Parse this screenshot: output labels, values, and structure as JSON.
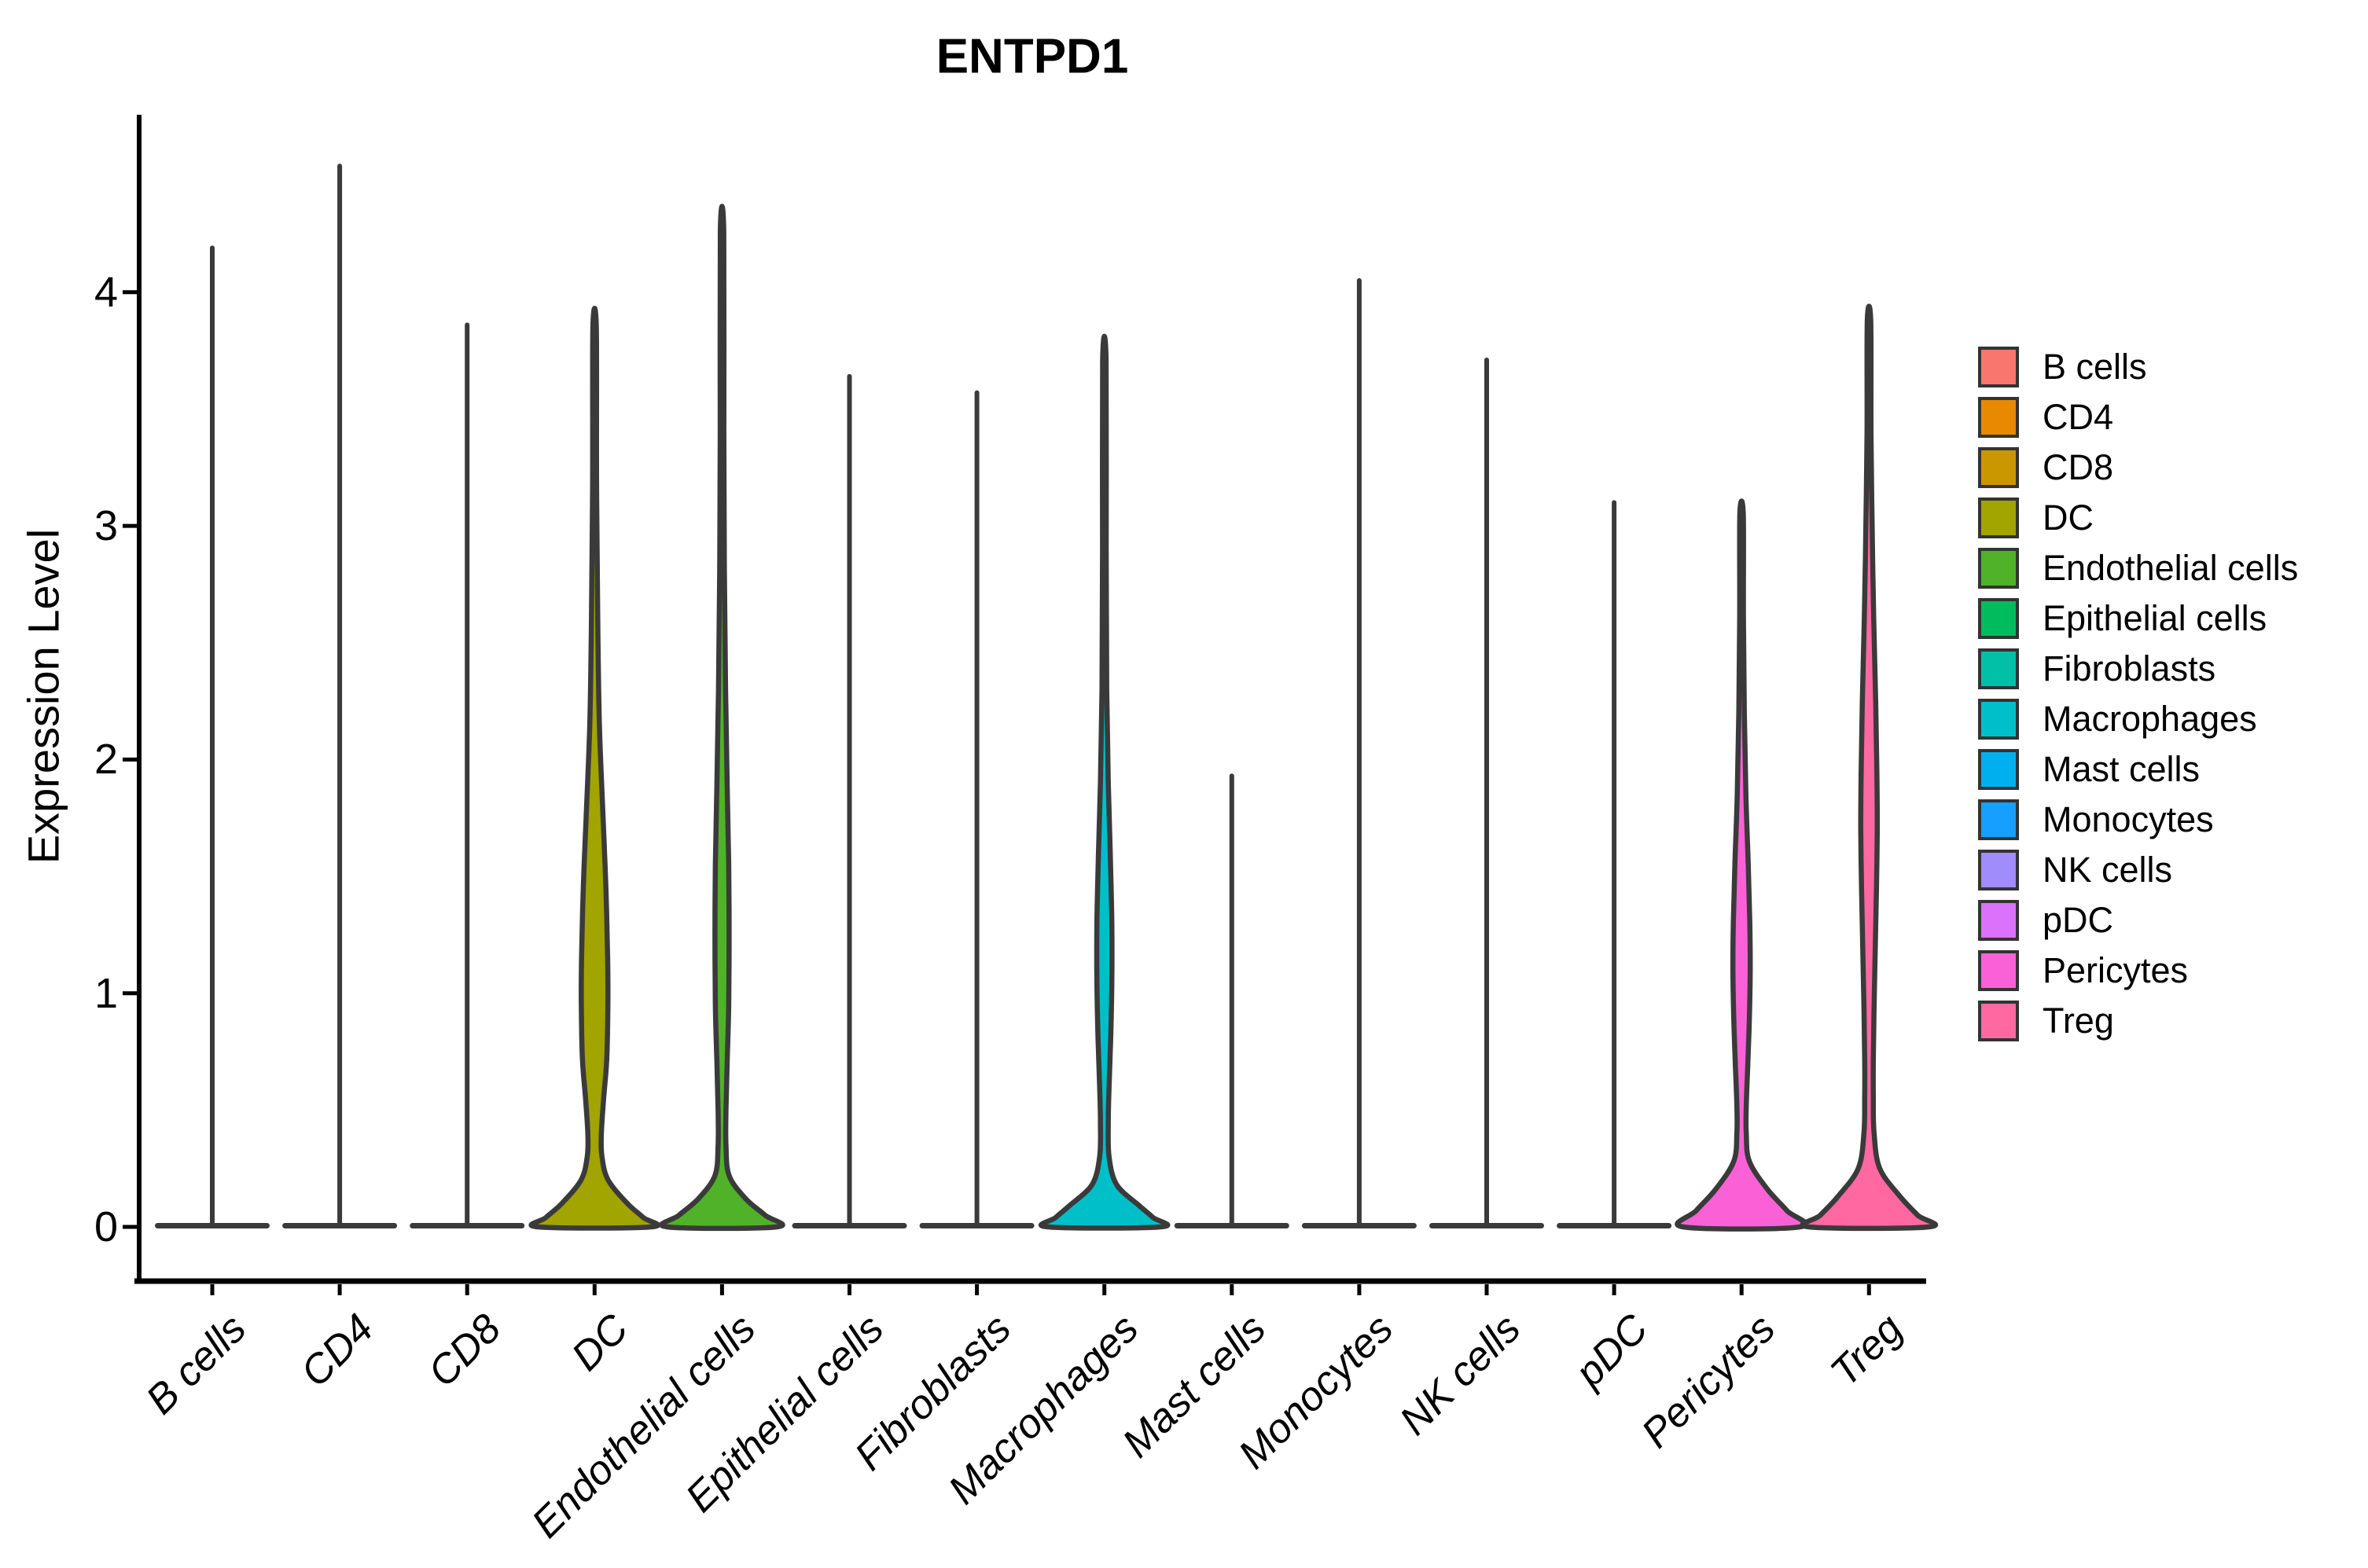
{
  "figure": {
    "title": "ENTPD1"
  },
  "axes": {
    "y_label": "Expression Level",
    "y_ticks": [
      "0",
      "1",
      "2",
      "3",
      "4"
    ],
    "x_tick_labels": [
      "B cells",
      "CD4",
      "CD8",
      "DC",
      "Endothelial cells",
      "Epithelial cells",
      "Fibroblasts",
      "Macrophages",
      "Mast cells",
      "Monocytes",
      "NK cells",
      "pDC",
      "Pericytes",
      "Treg"
    ]
  },
  "legend": {
    "items": [
      {
        "label": "B cells",
        "color": "#F8766D"
      },
      {
        "label": "CD4",
        "color": "#E78A00"
      },
      {
        "label": "CD8",
        "color": "#CB9701"
      },
      {
        "label": "DC",
        "color": "#A2A400"
      },
      {
        "label": "Endothelial cells",
        "color": "#4FB228"
      },
      {
        "label": "Epithelial cells",
        "color": "#00BC5D"
      },
      {
        "label": "Fibroblasts",
        "color": "#00C1A7"
      },
      {
        "label": "Macrophages",
        "color": "#00BFC9"
      },
      {
        "label": "Mast cells",
        "color": "#00B0EE"
      },
      {
        "label": "Monocytes",
        "color": "#169FFF"
      },
      {
        "label": "NK cells",
        "color": "#A18CFC"
      },
      {
        "label": "pDC",
        "color": "#DB72FB"
      },
      {
        "label": "Pericytes",
        "color": "#FA61D7"
      },
      {
        "label": "Treg",
        "color": "#FF68A1"
      }
    ]
  },
  "chart_data": {
    "type": "violin",
    "title": "ENTPD1",
    "xlabel": "",
    "ylabel": "Expression Level",
    "ylim": [
      0,
      4.75
    ],
    "yticks": [
      0,
      1,
      2,
      3,
      4
    ],
    "grid": false,
    "legend_position": "right",
    "categories": [
      "B cells",
      "CD4",
      "CD8",
      "DC",
      "Endothelial cells",
      "Epithelial cells",
      "Fibroblasts",
      "Macrophages",
      "Mast cells",
      "Monocytes",
      "NK cells",
      "pDC",
      "Pericytes",
      "Treg"
    ],
    "series": [
      {
        "name": "B cells",
        "color": "#F8766D",
        "max_expression": 4.19,
        "shape": "flat",
        "profile": null
      },
      {
        "name": "CD4",
        "color": "#E78A00",
        "max_expression": 4.54,
        "shape": "flat",
        "profile": null
      },
      {
        "name": "CD8",
        "color": "#CB9701",
        "max_expression": 3.86,
        "shape": "flat",
        "profile": null
      },
      {
        "name": "DC",
        "color": "#A2A400",
        "max_expression": 3.85,
        "shape": "bulged",
        "profile": [
          [
            3.85,
            0.03
          ],
          [
            3.2,
            0.035
          ],
          [
            2.6,
            0.055
          ],
          [
            2.15,
            0.085
          ],
          [
            1.75,
            0.15
          ],
          [
            1.45,
            0.2
          ],
          [
            1.15,
            0.23
          ],
          [
            0.95,
            0.235
          ],
          [
            0.72,
            0.215
          ],
          [
            0.55,
            0.16
          ],
          [
            0.4,
            0.12
          ],
          [
            0.3,
            0.13
          ],
          [
            0.2,
            0.24
          ],
          [
            0.1,
            0.58
          ],
          [
            0.04,
            0.86
          ],
          [
            0,
            1.0
          ]
        ]
      },
      {
        "name": "Endothelial cells",
        "color": "#4FB228",
        "max_expression": 4.26,
        "shape": "bulged",
        "profile": [
          [
            4.26,
            0.03
          ],
          [
            3.4,
            0.032
          ],
          [
            2.8,
            0.042
          ],
          [
            2.3,
            0.062
          ],
          [
            1.9,
            0.09
          ],
          [
            1.55,
            0.118
          ],
          [
            1.25,
            0.125
          ],
          [
            0.95,
            0.118
          ],
          [
            0.7,
            0.09
          ],
          [
            0.5,
            0.07
          ],
          [
            0.35,
            0.07
          ],
          [
            0.22,
            0.125
          ],
          [
            0.12,
            0.42
          ],
          [
            0.05,
            0.76
          ],
          [
            0,
            0.97
          ]
        ]
      },
      {
        "name": "Epithelial cells",
        "color": "#00BC5D",
        "max_expression": 3.64,
        "shape": "flat",
        "profile": null
      },
      {
        "name": "Fibroblasts",
        "color": "#00C1A7",
        "max_expression": 3.57,
        "shape": "flat",
        "profile": null
      },
      {
        "name": "Macrophages",
        "color": "#00BFC9",
        "max_expression": 3.71,
        "shape": "bulged",
        "profile": [
          [
            3.71,
            0.03
          ],
          [
            2.9,
            0.032
          ],
          [
            2.3,
            0.042
          ],
          [
            1.9,
            0.07
          ],
          [
            1.6,
            0.104
          ],
          [
            1.3,
            0.132
          ],
          [
            1.05,
            0.132
          ],
          [
            0.8,
            0.111
          ],
          [
            0.6,
            0.083
          ],
          [
            0.45,
            0.07
          ],
          [
            0.3,
            0.083
          ],
          [
            0.18,
            0.22
          ],
          [
            0.09,
            0.62
          ],
          [
            0.04,
            0.86
          ],
          [
            0,
            1.0
          ]
        ]
      },
      {
        "name": "Mast cells",
        "color": "#00B0EE",
        "max_expression": 1.93,
        "shape": "flat",
        "profile": null
      },
      {
        "name": "Monocytes",
        "color": "#169FFF",
        "max_expression": 4.05,
        "shape": "flat",
        "profile": null
      },
      {
        "name": "NK cells",
        "color": "#A18CFC",
        "max_expression": 3.71,
        "shape": "flat",
        "profile": null
      },
      {
        "name": "pDC",
        "color": "#DB72FB",
        "max_expression": 3.1,
        "shape": "flat",
        "profile": null
      },
      {
        "name": "Pericytes",
        "color": "#FA61D7",
        "max_expression": 3.05,
        "shape": "bulged",
        "profile": [
          [
            3.05,
            0.03
          ],
          [
            2.6,
            0.033
          ],
          [
            2.2,
            0.049
          ],
          [
            1.85,
            0.076
          ],
          [
            1.55,
            0.118
          ],
          [
            1.3,
            0.146
          ],
          [
            1.1,
            0.153
          ],
          [
            0.9,
            0.139
          ],
          [
            0.7,
            0.111
          ],
          [
            0.52,
            0.083
          ],
          [
            0.4,
            0.083
          ],
          [
            0.28,
            0.139
          ],
          [
            0.16,
            0.46
          ],
          [
            0.07,
            0.8
          ],
          [
            0,
            1.03
          ]
        ]
      },
      {
        "name": "Treg",
        "color": "#FF68A1",
        "max_expression": 3.88,
        "shape": "bulged",
        "profile": [
          [
            3.88,
            0.03
          ],
          [
            3.4,
            0.035
          ],
          [
            3.0,
            0.055
          ],
          [
            2.6,
            0.083
          ],
          [
            2.25,
            0.118
          ],
          [
            1.95,
            0.139
          ],
          [
            1.7,
            0.146
          ],
          [
            1.45,
            0.132
          ],
          [
            1.2,
            0.111
          ],
          [
            0.95,
            0.09
          ],
          [
            0.72,
            0.076
          ],
          [
            0.55,
            0.076
          ],
          [
            0.4,
            0.09
          ],
          [
            0.25,
            0.19
          ],
          [
            0.13,
            0.55
          ],
          [
            0.05,
            0.86
          ],
          [
            0,
            1.06
          ]
        ]
      }
    ]
  }
}
